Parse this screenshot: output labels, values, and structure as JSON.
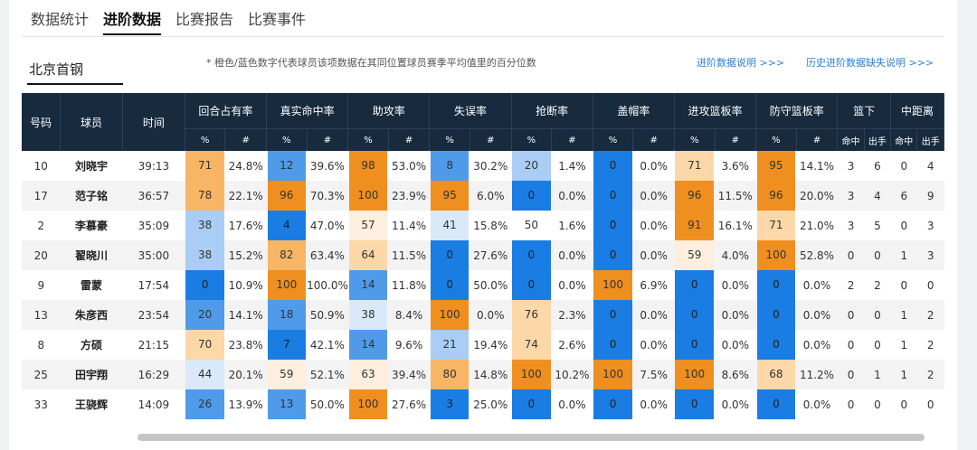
{
  "tabs": [
    {
      "label": "数据统计"
    },
    {
      "label": "进阶数据"
    },
    {
      "label": "比赛报告"
    },
    {
      "label": "比赛事件"
    }
  ],
  "team": "北京首钢",
  "note": "* 橙色/蓝色数字代表球员该项数据在其同位置球员赛季平均值里的百分位数",
  "links": {
    "advanced_explain": "进阶数据说明 >>>",
    "history_missing": "历史进阶数据缺失说明 >>>"
  },
  "header": {
    "no": "号码",
    "player": "球员",
    "time": "时间",
    "groups": [
      "回合占有率",
      "真实命中率",
      "助攻率",
      "失误率",
      "抢断率",
      "盖帽率",
      "进攻篮板率",
      "防守篮板率"
    ],
    "basket": "篮下",
    "mid": "中距离",
    "pct": "%",
    "hash": "#",
    "made": "命中",
    "att": "出手"
  },
  "rows": [
    {
      "no": "10",
      "name": "刘晓宇",
      "time": "39:13",
      "stats": [
        [
          "71",
          "24.8%",
          "o2"
        ],
        [
          "12",
          "39.6%",
          "b2"
        ],
        [
          "98",
          "53.0%",
          "o1"
        ],
        [
          "8",
          "30.2%",
          "b2"
        ],
        [
          "20",
          "1.4%",
          "b3"
        ],
        [
          "0",
          "0.0%",
          "b1"
        ],
        [
          "71",
          "3.6%",
          "o3"
        ],
        [
          "95",
          "14.1%",
          "o1"
        ]
      ],
      "b_m": "3",
      "b_a": "6",
      "m_m": "0",
      "m_a": "4"
    },
    {
      "no": "17",
      "name": "范子铭",
      "time": "36:57",
      "stats": [
        [
          "78",
          "22.1%",
          "o2"
        ],
        [
          "96",
          "70.3%",
          "o1"
        ],
        [
          "100",
          "23.9%",
          "o1"
        ],
        [
          "95",
          "6.0%",
          "o1"
        ],
        [
          "0",
          "0.0%",
          "b1"
        ],
        [
          "0",
          "0.0%",
          "b1"
        ],
        [
          "96",
          "11.5%",
          "o1"
        ],
        [
          "96",
          "20.0%",
          "o1"
        ]
      ],
      "b_m": "3",
      "b_a": "4",
      "m_m": "6",
      "m_a": "9"
    },
    {
      "no": "2",
      "name": "李慕豪",
      "time": "35:09",
      "stats": [
        [
          "38",
          "17.6%",
          "b3"
        ],
        [
          "4",
          "47.0%",
          "b1"
        ],
        [
          "57",
          "11.4%",
          "o4"
        ],
        [
          "41",
          "15.8%",
          "b4"
        ],
        [
          "50",
          "1.6%",
          "w"
        ],
        [
          "0",
          "0.0%",
          "b1"
        ],
        [
          "91",
          "16.1%",
          "o1"
        ],
        [
          "71",
          "21.0%",
          "o3"
        ]
      ],
      "b_m": "3",
      "b_a": "5",
      "m_m": "0",
      "m_a": "3"
    },
    {
      "no": "20",
      "name": "翟晓川",
      "time": "35:00",
      "stats": [
        [
          "38",
          "15.2%",
          "b3"
        ],
        [
          "82",
          "63.4%",
          "o2"
        ],
        [
          "64",
          "11.5%",
          "o3"
        ],
        [
          "0",
          "27.6%",
          "b1"
        ],
        [
          "0",
          "0.0%",
          "b1"
        ],
        [
          "0",
          "0.0%",
          "b1"
        ],
        [
          "59",
          "4.0%",
          "o4"
        ],
        [
          "100",
          "52.8%",
          "o1"
        ]
      ],
      "b_m": "0",
      "b_a": "0",
      "m_m": "1",
      "m_a": "3"
    },
    {
      "no": "9",
      "name": "雷蒙",
      "time": "17:54",
      "stats": [
        [
          "0",
          "10.9%",
          "b1"
        ],
        [
          "100",
          "100.0%",
          "o1"
        ],
        [
          "14",
          "11.8%",
          "b2"
        ],
        [
          "0",
          "50.0%",
          "b1"
        ],
        [
          "0",
          "0.0%",
          "b1"
        ],
        [
          "100",
          "6.9%",
          "o1"
        ],
        [
          "0",
          "0.0%",
          "b1"
        ],
        [
          "0",
          "0.0%",
          "b1"
        ]
      ],
      "b_m": "2",
      "b_a": "2",
      "m_m": "0",
      "m_a": "0"
    },
    {
      "no": "13",
      "name": "朱彦西",
      "time": "23:54",
      "stats": [
        [
          "20",
          "14.1%",
          "b2"
        ],
        [
          "18",
          "50.9%",
          "b2"
        ],
        [
          "38",
          "8.4%",
          "b4"
        ],
        [
          "100",
          "0.0%",
          "o1"
        ],
        [
          "76",
          "2.3%",
          "o3"
        ],
        [
          "0",
          "0.0%",
          "b1"
        ],
        [
          "0",
          "0.0%",
          "b1"
        ],
        [
          "0",
          "0.0%",
          "b1"
        ]
      ],
      "b_m": "0",
      "b_a": "0",
      "m_m": "1",
      "m_a": "2"
    },
    {
      "no": "8",
      "name": "方硕",
      "time": "21:15",
      "stats": [
        [
          "70",
          "23.8%",
          "o3"
        ],
        [
          "7",
          "42.1%",
          "b1"
        ],
        [
          "14",
          "9.6%",
          "b2"
        ],
        [
          "21",
          "19.4%",
          "b3"
        ],
        [
          "74",
          "2.6%",
          "o3"
        ],
        [
          "0",
          "0.0%",
          "b1"
        ],
        [
          "0",
          "0.0%",
          "b1"
        ],
        [
          "0",
          "0.0%",
          "b1"
        ]
      ],
      "b_m": "0",
      "b_a": "0",
      "m_m": "1",
      "m_a": "2"
    },
    {
      "no": "25",
      "name": "田宇翔",
      "time": "16:29",
      "stats": [
        [
          "44",
          "20.1%",
          "b4"
        ],
        [
          "59",
          "52.1%",
          "o4"
        ],
        [
          "63",
          "39.4%",
          "o4"
        ],
        [
          "80",
          "14.8%",
          "o2"
        ],
        [
          "100",
          "10.2%",
          "o1"
        ],
        [
          "100",
          "7.5%",
          "o1"
        ],
        [
          "100",
          "8.6%",
          "o1"
        ],
        [
          "68",
          "11.2%",
          "o3"
        ]
      ],
      "b_m": "0",
      "b_a": "1",
      "m_m": "1",
      "m_a": "2"
    },
    {
      "no": "33",
      "name": "王骁辉",
      "time": "14:09",
      "stats": [
        [
          "26",
          "13.9%",
          "b2"
        ],
        [
          "13",
          "50.0%",
          "b2"
        ],
        [
          "100",
          "27.6%",
          "o1"
        ],
        [
          "3",
          "25.0%",
          "b1"
        ],
        [
          "0",
          "0.0%",
          "b1"
        ],
        [
          "0",
          "0.0%",
          "b1"
        ],
        [
          "0",
          "0.0%",
          "b1"
        ],
        [
          "0",
          "0.0%",
          "b1"
        ]
      ],
      "b_m": "0",
      "b_a": "0",
      "m_m": "0",
      "m_a": "0"
    }
  ]
}
